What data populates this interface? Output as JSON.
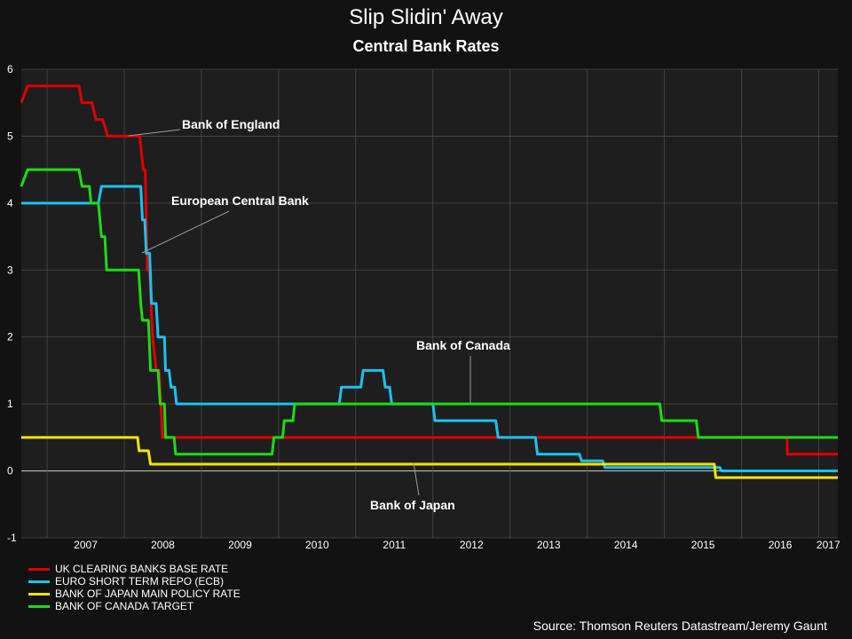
{
  "title": "Slip Slidin' Away",
  "subtitle": "Central Bank Rates",
  "source": "Source: Thomson Reuters Datastream/Jeremy Gaunt",
  "colors": {
    "background": "#121212",
    "plot_background": "#1e1e1e",
    "grid": "#4a4a4a",
    "zero_line": "#cfcfcf",
    "annotation_line": "#9a9a9a"
  },
  "chart_data": {
    "type": "line",
    "title": "Slip Slidin' Away",
    "subtitle": "Central Bank Rates",
    "xlabel": "",
    "ylabel": "",
    "xlim": [
      "2006-09-01",
      "2017-04-01"
    ],
    "ylim": [
      -1,
      6
    ],
    "yticks": [
      "-1",
      "0",
      "1",
      "2",
      "3",
      "4",
      "5",
      "6"
    ],
    "xticks": [
      "2007",
      "2008",
      "2009",
      "2010",
      "2011",
      "2012",
      "2013",
      "2014",
      "2015",
      "2016",
      "2017"
    ],
    "grid": true,
    "legend_position": "bottom-left",
    "annotations": [
      {
        "text": "Bank of England",
        "series": "UK CLEARING BANKS BASE RATE"
      },
      {
        "text": "European Central Bank",
        "series": "EURO SHORT TERM REPO (ECB)"
      },
      {
        "text": "Bank of Canada",
        "series": "BANK OF CANADA TARGET"
      },
      {
        "text": "Bank of Japan",
        "series": "BANK OF JAPAN MAIN POLICY RATE"
      }
    ],
    "series": [
      {
        "name": "UK CLEARING BANKS BASE RATE",
        "color": "#e00000",
        "step_points": [
          [
            "2006-09-01",
            5.5
          ],
          [
            "2006-10-01",
            5.75
          ],
          [
            "2007-06-01",
            5.75
          ],
          [
            "2007-06-15",
            5.5
          ],
          [
            "2007-08-01",
            5.5
          ],
          [
            "2007-08-20",
            5.25
          ],
          [
            "2007-09-20",
            5.25
          ],
          [
            "2007-10-15",
            5.0
          ],
          [
            "2008-03-15",
            5.0
          ],
          [
            "2008-04-01",
            4.5
          ],
          [
            "2008-04-10",
            4.5
          ],
          [
            "2008-04-20",
            3.0
          ],
          [
            "2008-05-01",
            3.0
          ],
          [
            "2008-05-15",
            2.0
          ],
          [
            "2008-06-01",
            1.5
          ],
          [
            "2008-06-15",
            1.5
          ],
          [
            "2008-07-01",
            0.5
          ],
          [
            "2016-08-04",
            0.5
          ],
          [
            "2016-08-05",
            0.25
          ],
          [
            "2017-04-01",
            0.25
          ]
        ]
      },
      {
        "name": "EURO SHORT TERM REPO (ECB)",
        "color": "#19c3f0",
        "step_points": [
          [
            "2006-09-01",
            4.0
          ],
          [
            "2007-09-01",
            4.0
          ],
          [
            "2007-09-15",
            4.25
          ],
          [
            "2008-03-20",
            4.25
          ],
          [
            "2008-03-28",
            3.75
          ],
          [
            "2008-04-08",
            3.75
          ],
          [
            "2008-04-15",
            3.25
          ],
          [
            "2008-05-01",
            3.25
          ],
          [
            "2008-05-10",
            2.5
          ],
          [
            "2008-06-01",
            2.5
          ],
          [
            "2008-06-10",
            2.0
          ],
          [
            "2008-07-10",
            2.0
          ],
          [
            "2008-07-15",
            1.5
          ],
          [
            "2008-08-01",
            1.5
          ],
          [
            "2008-08-10",
            1.25
          ],
          [
            "2008-08-28",
            1.25
          ],
          [
            "2008-09-05",
            1.0
          ],
          [
            "2010-10-15",
            1.0
          ],
          [
            "2010-10-25",
            1.25
          ],
          [
            "2011-01-25",
            1.25
          ],
          [
            "2011-02-05",
            1.5
          ],
          [
            "2011-05-10",
            1.5
          ],
          [
            "2011-05-20",
            1.25
          ],
          [
            "2011-06-10",
            1.25
          ],
          [
            "2011-06-20",
            1.0
          ],
          [
            "2012-01-01",
            1.0
          ],
          [
            "2012-01-10",
            0.75
          ],
          [
            "2012-10-25",
            0.75
          ],
          [
            "2012-11-05",
            0.5
          ],
          [
            "2013-05-01",
            0.5
          ],
          [
            "2013-05-10",
            0.25
          ],
          [
            "2013-11-25",
            0.25
          ],
          [
            "2013-12-05",
            0.15
          ],
          [
            "2014-03-15",
            0.15
          ],
          [
            "2014-03-25",
            0.05
          ],
          [
            "2015-09-20",
            0.05
          ],
          [
            "2015-09-28",
            0.0
          ],
          [
            "2017-04-01",
            0.0
          ]
        ]
      },
      {
        "name": "BANK OF JAPAN MAIN POLICY RATE",
        "color": "#f2e600",
        "step_points": [
          [
            "2006-09-01",
            0.5
          ],
          [
            "2008-03-05",
            0.5
          ],
          [
            "2008-03-12",
            0.3
          ],
          [
            "2008-04-25",
            0.3
          ],
          [
            "2008-05-05",
            0.1
          ],
          [
            "2015-08-25",
            0.1
          ],
          [
            "2015-09-01",
            -0.1
          ],
          [
            "2017-04-01",
            -0.1
          ]
        ]
      },
      {
        "name": "BANK OF CANADA TARGET",
        "color": "#1edc14",
        "step_points": [
          [
            "2006-09-01",
            4.25
          ],
          [
            "2006-10-01",
            4.5
          ],
          [
            "2007-06-01",
            4.5
          ],
          [
            "2007-06-15",
            4.25
          ],
          [
            "2007-07-20",
            4.25
          ],
          [
            "2007-07-28",
            4.0
          ],
          [
            "2007-09-01",
            4.0
          ],
          [
            "2007-09-15",
            3.5
          ],
          [
            "2007-10-01",
            3.5
          ],
          [
            "2007-10-10",
            3.0
          ],
          [
            "2008-03-10",
            3.0
          ],
          [
            "2008-03-20",
            2.5
          ],
          [
            "2008-03-28",
            2.25
          ],
          [
            "2008-04-25",
            2.25
          ],
          [
            "2008-05-05",
            1.5
          ],
          [
            "2008-06-10",
            1.5
          ],
          [
            "2008-06-20",
            1.0
          ],
          [
            "2008-07-10",
            1.0
          ],
          [
            "2008-07-15",
            0.5
          ],
          [
            "2008-08-25",
            0.5
          ],
          [
            "2008-09-01",
            0.25
          ],
          [
            "2009-12-01",
            0.25
          ],
          [
            "2009-12-10",
            0.5
          ],
          [
            "2010-01-20",
            0.5
          ],
          [
            "2010-01-28",
            0.75
          ],
          [
            "2010-03-10",
            0.75
          ],
          [
            "2010-03-18",
            1.0
          ],
          [
            "2014-12-10",
            1.0
          ],
          [
            "2014-12-20",
            0.75
          ],
          [
            "2015-06-01",
            0.75
          ],
          [
            "2015-06-10",
            0.5
          ],
          [
            "2017-04-01",
            0.5
          ]
        ]
      }
    ]
  }
}
